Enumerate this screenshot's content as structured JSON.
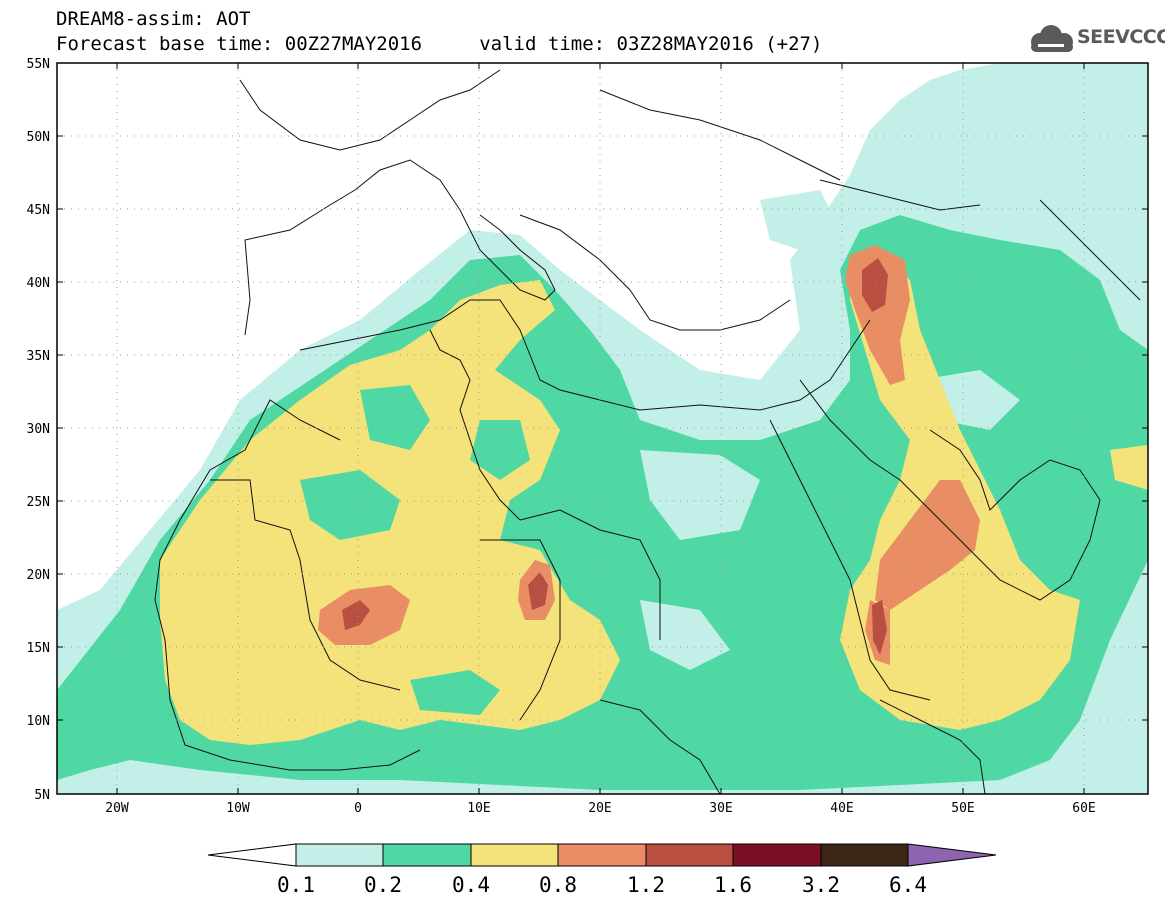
{
  "header": {
    "title_line1": "DREAM8-assim: AOT",
    "title_line2": "Forecast base time: 00Z27MAY2016     valid time: 03Z28MAY2016 (+27)"
  },
  "logo": {
    "text": "SEEVCCC",
    "icon": "cloud-icon"
  },
  "axes": {
    "lat_labels": [
      "55N",
      "50N",
      "45N",
      "40N",
      "35N",
      "30N",
      "25N",
      "20N",
      "15N",
      "10N",
      "5N"
    ],
    "lon_labels": [
      "20W",
      "10W",
      "0",
      "10E",
      "20E",
      "30E",
      "40E",
      "50E",
      "60E"
    ]
  },
  "colorbar": {
    "labels": [
      "0.1",
      "0.2",
      "0.4",
      "0.8",
      "1.2",
      "1.6",
      "3.2",
      "6.4"
    ],
    "colors": [
      "#ffffff",
      "#c2efe8",
      "#4fd8a4",
      "#f4e27a",
      "#e88d64",
      "#b84f40",
      "#7a0f28",
      "#3d2616",
      "#8c64b0"
    ]
  },
  "map": {
    "land_color": "#ffffff",
    "levels": {
      "aot_0_1": "#c2efe8",
      "aot_0_2": "#4fd8a4",
      "aot_0_4": "#f4e27a",
      "aot_0_8": "#e88d64",
      "aot_1_2": "#b84f40"
    }
  }
}
